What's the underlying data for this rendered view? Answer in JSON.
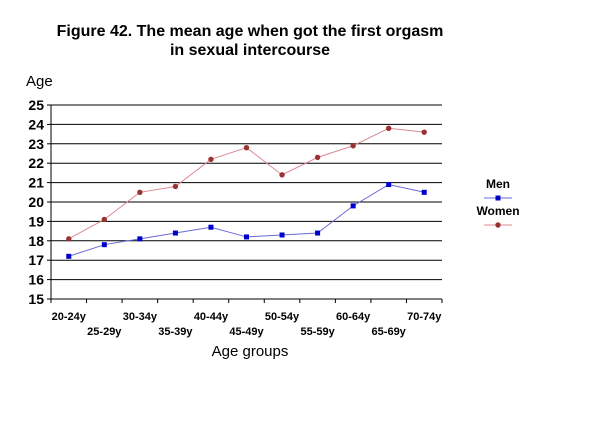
{
  "chart_data": {
    "type": "line",
    "title_lines": [
      "Figure 42. The mean age when got the first orgasm",
      "in sexual intercourse"
    ],
    "xlabel": "Age groups",
    "ylabel": "Age",
    "ylim": [
      15,
      25
    ],
    "yticks": [
      15,
      16,
      17,
      18,
      19,
      20,
      21,
      22,
      23,
      24,
      25
    ],
    "grid": true,
    "legend_position": "right",
    "categories": [
      "20-24y",
      "25-29y",
      "30-34y",
      "35-39y",
      "40-44y",
      "45-49y",
      "50-54y",
      "55-59y",
      "60-64y",
      "65-69y",
      "70-74y"
    ],
    "series": [
      {
        "name": "Men",
        "color": "#0000cc",
        "line_color": "#6a6ad8",
        "marker": "square",
        "values": [
          17.2,
          17.8,
          18.1,
          18.4,
          18.7,
          18.2,
          18.3,
          18.4,
          19.8,
          20.9,
          20.5
        ]
      },
      {
        "name": "Women",
        "color": "#993333",
        "line_color": "#dc8a96",
        "marker": "circle",
        "values": [
          18.1,
          19.1,
          20.5,
          20.8,
          22.2,
          22.8,
          21.4,
          22.3,
          22.9,
          23.8,
          23.6
        ]
      }
    ]
  }
}
